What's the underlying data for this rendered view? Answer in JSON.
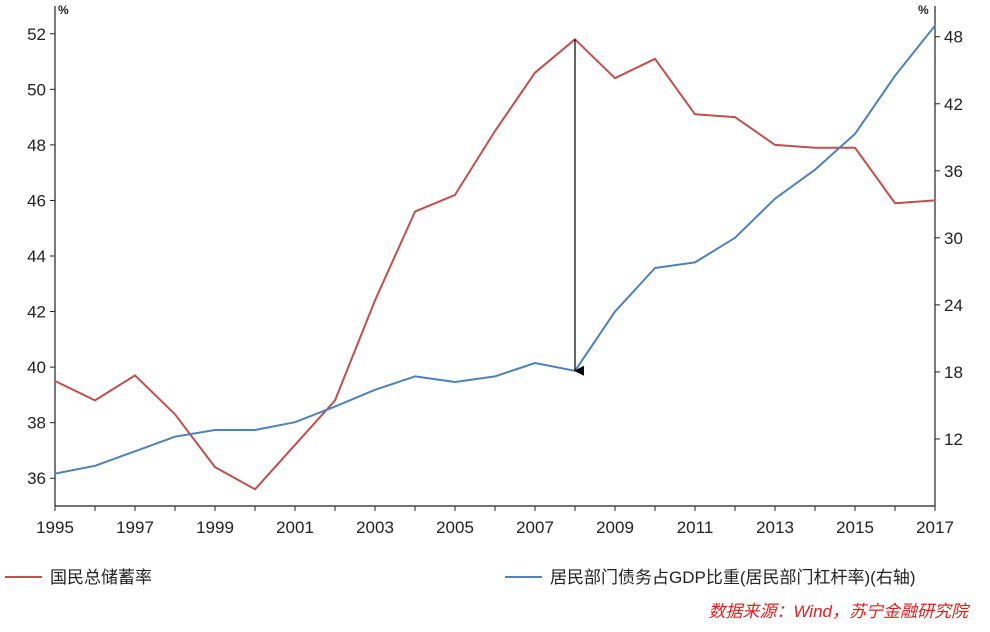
{
  "chart_data": {
    "type": "line",
    "x": [
      1995,
      1996,
      1997,
      1998,
      1999,
      2000,
      2001,
      2002,
      2003,
      2004,
      2005,
      2006,
      2007,
      2008,
      2009,
      2010,
      2011,
      2012,
      2013,
      2014,
      2015,
      2016,
      2017
    ],
    "series": [
      {
        "name": "国民总储蓄率",
        "axis": "left",
        "color": "#c0504d",
        "values": [
          39.5,
          38.8,
          39.7,
          38.3,
          36.4,
          35.6,
          37.2,
          38.8,
          42.4,
          45.6,
          46.2,
          48.5,
          50.6,
          51.8,
          50.4,
          51.1,
          49.1,
          49.0,
          48.0,
          47.9,
          47.9,
          45.9,
          46.0
        ]
      },
      {
        "name": "居民部门债务占GDP比重(居民部门杠杆率)(右轴)",
        "axis": "right",
        "color": "#4f81bd",
        "values": [
          8.9,
          9.6,
          10.9,
          12.2,
          12.8,
          12.8,
          13.5,
          14.9,
          16.4,
          17.6,
          17.1,
          17.6,
          18.8,
          18.1,
          23.4,
          27.3,
          27.8,
          30.0,
          33.5,
          36.1,
          39.3,
          44.5,
          49.0
        ]
      }
    ],
    "xticks": [
      "1995",
      "1997",
      "1999",
      "2001",
      "2003",
      "2005",
      "2007",
      "2009",
      "2011",
      "2013",
      "2015",
      "2017"
    ],
    "yticks_left": [
      "36",
      "38",
      "40",
      "42",
      "44",
      "46",
      "48",
      "50",
      "52"
    ],
    "yticks_right": [
      "12",
      "18",
      "24",
      "30",
      "36",
      "42",
      "48"
    ],
    "ylim_left": [
      35,
      53
    ],
    "ylim_right": [
      6,
      50.75
    ],
    "xlim": [
      1995,
      2017
    ],
    "left_unit": "%",
    "right_unit": "%",
    "annotation": {
      "type": "arrow",
      "x": 2008,
      "from_series": 0,
      "to_series": 1
    },
    "legend_position": "bottom",
    "source_note": "数据来源：Wind，苏宁金融研究院"
  }
}
